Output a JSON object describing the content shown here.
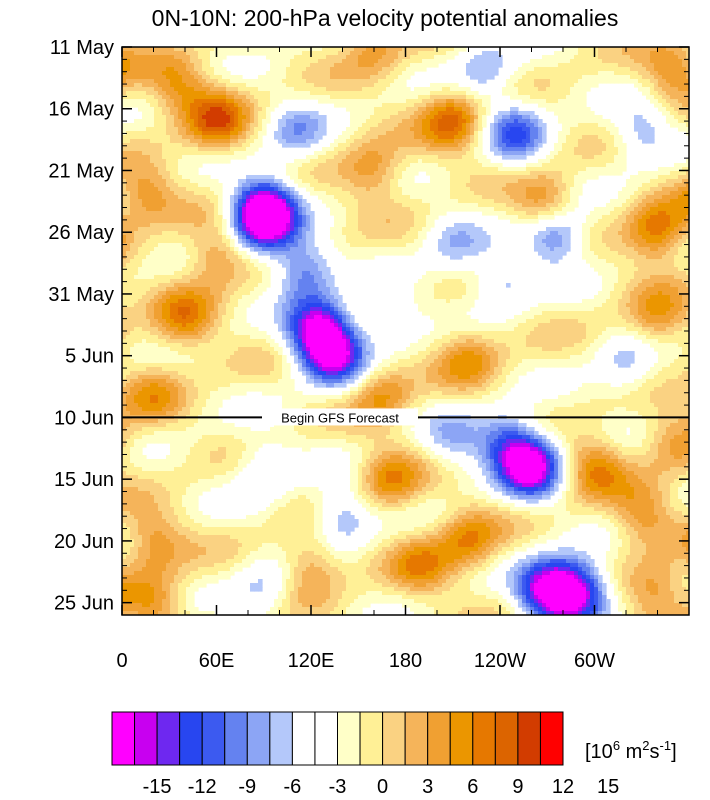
{
  "chart_data": {
    "type": "heatmap",
    "title": "0N-10N: 200-hPa velocity potential anomalies",
    "x_ticks": [
      {
        "lon": 0,
        "label": "0"
      },
      {
        "lon": 60,
        "label": "60E"
      },
      {
        "lon": 120,
        "label": "120E"
      },
      {
        "lon": 180,
        "label": "180"
      },
      {
        "lon": 240,
        "label": "120W"
      },
      {
        "lon": 300,
        "label": "60W"
      }
    ],
    "x_range": [
      0,
      360
    ],
    "x_minor_step": 20,
    "y_ticks": [
      {
        "day": 0,
        "label": "11 May"
      },
      {
        "day": 5,
        "label": "16 May"
      },
      {
        "day": 10,
        "label": "21 May"
      },
      {
        "day": 15,
        "label": "26 May"
      },
      {
        "day": 20,
        "label": "31 May"
      },
      {
        "day": 25,
        "label": "5 Jun"
      },
      {
        "day": 30,
        "label": "10 Jun"
      },
      {
        "day": 35,
        "label": "15 Jun"
      },
      {
        "day": 40,
        "label": "20 Jun"
      },
      {
        "day": 45,
        "label": "25 Jun"
      }
    ],
    "y_range": [
      0,
      46
    ],
    "annotation": {
      "text": "Begin GFS Forecast",
      "day": 30
    },
    "colorbar": {
      "unit_base": "[10",
      "unit_exp1": "6",
      "unit_mid": " m",
      "unit_exp2": "2",
      "unit_s": "s",
      "unit_exp3": "-1",
      "unit_end": "]",
      "labels": [
        "-15",
        "-12",
        "-9",
        "-6",
        "-3",
        "0",
        "3",
        "6",
        "9",
        "12",
        "15"
      ],
      "colors": [
        "#ff00ff",
        "#c800f0",
        "#6e28f0",
        "#2846f0",
        "#3c5af0",
        "#6482f0",
        "#8ca5f5",
        "#b4c8fa",
        "#ffffff",
        "#ffffff",
        "#ffffc8",
        "#fff096",
        "#fad282",
        "#f5b45a",
        "#f0a032",
        "#eb9600",
        "#e67800",
        "#dc6400",
        "#d23c00",
        "#ff0000"
      ]
    },
    "features": [
      {
        "lon": 15,
        "day": 12,
        "value": 6
      },
      {
        "lon": 35,
        "day": 3,
        "value": 6
      },
      {
        "lon": 60,
        "day": 6,
        "value": 9
      },
      {
        "lon": 60,
        "day": 17,
        "value": 6
      },
      {
        "lon": 40,
        "day": 22,
        "value": 7
      },
      {
        "lon": 20,
        "day": 28,
        "value": 5
      },
      {
        "lon": 90,
        "day": 13,
        "value": -9
      },
      {
        "lon": 90,
        "day": 14,
        "value": -15
      },
      {
        "lon": 110,
        "day": 7,
        "value": -6
      },
      {
        "lon": 115,
        "day": 18,
        "value": -9
      },
      {
        "lon": 125,
        "day": 23,
        "value": -15
      },
      {
        "lon": 135,
        "day": 25,
        "value": -12
      },
      {
        "lon": 170,
        "day": 22,
        "value": -5
      },
      {
        "lon": 160,
        "day": 10,
        "value": 6
      },
      {
        "lon": 160,
        "day": 0,
        "value": 5
      },
      {
        "lon": 165,
        "day": 28,
        "value": 6
      },
      {
        "lon": 210,
        "day": 6,
        "value": 9
      },
      {
        "lon": 210,
        "day": 16,
        "value": -5
      },
      {
        "lon": 240,
        "day": 19,
        "value": -6
      },
      {
        "lon": 220,
        "day": 25,
        "value": 6
      },
      {
        "lon": 230,
        "day": 2,
        "value": -6
      },
      {
        "lon": 250,
        "day": 7,
        "value": -9
      },
      {
        "lon": 270,
        "day": 13,
        "value": 9
      },
      {
        "lon": 275,
        "day": 15,
        "value": -12
      },
      {
        "lon": 330,
        "day": 7,
        "value": -6
      },
      {
        "lon": 340,
        "day": 15,
        "value": 9
      },
      {
        "lon": 320,
        "day": 26,
        "value": -5
      },
      {
        "lon": 340,
        "day": 22,
        "value": 6
      },
      {
        "lon": 350,
        "day": 2,
        "value": 6
      },
      {
        "lon": 20,
        "day": 40,
        "value": 6
      },
      {
        "lon": 20,
        "day": 45,
        "value": 6
      },
      {
        "lon": 90,
        "day": 34,
        "value": -5
      },
      {
        "lon": 120,
        "day": 42,
        "value": 6
      },
      {
        "lon": 90,
        "day": 44,
        "value": -5
      },
      {
        "lon": 140,
        "day": 38,
        "value": -7
      },
      {
        "lon": 170,
        "day": 35,
        "value": 7
      },
      {
        "lon": 190,
        "day": 42,
        "value": 6
      },
      {
        "lon": 210,
        "day": 32,
        "value": -5
      },
      {
        "lon": 220,
        "day": 40,
        "value": 7
      },
      {
        "lon": 245,
        "day": 32,
        "value": -9
      },
      {
        "lon": 260,
        "day": 34,
        "value": -15
      },
      {
        "lon": 270,
        "day": 44,
        "value": -15
      },
      {
        "lon": 290,
        "day": 44,
        "value": -14
      },
      {
        "lon": 300,
        "day": 34,
        "value": 7
      },
      {
        "lon": 330,
        "day": 38,
        "value": 6
      },
      {
        "lon": 340,
        "day": 44,
        "value": 6
      },
      {
        "lon": 350,
        "day": 32,
        "value": 5
      }
    ]
  }
}
